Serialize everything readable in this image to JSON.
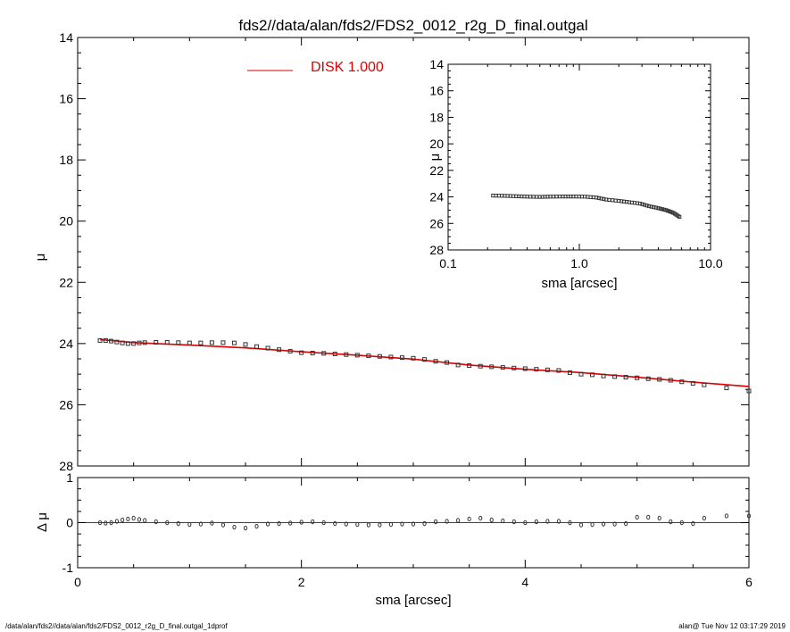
{
  "title": "fds2//data/alan/fds2/FDS2_0012_r2g_D_final.outgal",
  "footer_left": "/data/alan/fds2//data/alan/fds2/FDS2_0012_r2g_D_final.outgal_1dprof",
  "footer_right": "alan@  Tue Nov 12 03:17:29 2019",
  "colors": {
    "model": "#e00000",
    "data": "#333333"
  },
  "chart_data": [
    {
      "id": "main",
      "type": "scatter",
      "ylabel": "μ",
      "xlim": [
        0,
        6
      ],
      "ylim": [
        28,
        14
      ],
      "y_inverted": true,
      "yticks": [
        14,
        16,
        18,
        20,
        22,
        24,
        26,
        28
      ],
      "legend": {
        "label": "DISK  1.000",
        "placement": "top-center",
        "color": "#e00000"
      },
      "data_points": {
        "x": [
          0.2,
          0.25,
          0.3,
          0.35,
          0.4,
          0.45,
          0.5,
          0.55,
          0.6,
          0.7,
          0.8,
          0.9,
          1.0,
          1.1,
          1.2,
          1.3,
          1.4,
          1.5,
          1.6,
          1.7,
          1.8,
          1.9,
          2.0,
          2.1,
          2.2,
          2.3,
          2.4,
          2.5,
          2.6,
          2.7,
          2.8,
          2.9,
          3.0,
          3.1,
          3.2,
          3.3,
          3.4,
          3.5,
          3.6,
          3.7,
          3.8,
          3.9,
          4.0,
          4.1,
          4.2,
          4.3,
          4.4,
          4.5,
          4.6,
          4.7,
          4.8,
          4.9,
          5.0,
          5.1,
          5.2,
          5.3,
          5.4,
          5.5,
          5.6,
          5.8,
          6.0
        ],
        "y": [
          23.9,
          23.9,
          23.92,
          23.95,
          23.98,
          24.0,
          24.0,
          23.98,
          23.97,
          23.96,
          23.96,
          23.97,
          23.98,
          23.98,
          23.97,
          23.97,
          23.98,
          24.03,
          24.1,
          24.15,
          24.2,
          24.25,
          24.3,
          24.31,
          24.32,
          24.34,
          24.36,
          24.38,
          24.4,
          24.42,
          24.44,
          24.46,
          24.48,
          24.52,
          24.58,
          24.62,
          24.7,
          24.72,
          24.74,
          24.76,
          24.78,
          24.8,
          24.82,
          24.84,
          24.86,
          24.88,
          24.95,
          25.0,
          25.02,
          25.06,
          25.08,
          25.1,
          25.12,
          25.15,
          25.17,
          25.2,
          25.25,
          25.3,
          25.35,
          25.45,
          25.55
        ]
      },
      "model": {
        "x": [
          0.2,
          0.5,
          1.0,
          1.5,
          2.0,
          2.5,
          3.0,
          3.5,
          4.0,
          4.5,
          5.0,
          5.5,
          6.0
        ],
        "y": [
          23.87,
          23.97,
          24.05,
          24.14,
          24.27,
          24.38,
          24.51,
          24.7,
          24.84,
          24.95,
          25.1,
          25.26,
          25.4
        ]
      }
    },
    {
      "id": "inset",
      "type": "scatter",
      "ylabel": "μ",
      "xlabel": "sma [arcsec]",
      "xscale": "log",
      "xlim": [
        0.1,
        10.0
      ],
      "xtick_labels": [
        "0.1",
        "1.0",
        "10.0"
      ],
      "xticks": [
        0.1,
        1.0,
        10.0
      ],
      "ylim": [
        28,
        14
      ],
      "y_inverted": true,
      "yticks": [
        14,
        16,
        18,
        20,
        22,
        24,
        26,
        28
      ],
      "data_points": {
        "x": [
          0.22,
          0.27,
          0.33,
          0.4,
          0.5,
          0.6,
          0.75,
          0.9,
          1.1,
          1.35,
          1.6,
          2.0,
          2.4,
          2.9,
          3.4,
          4.0,
          4.6,
          5.2,
          5.8
        ],
        "y": [
          23.9,
          23.92,
          23.95,
          23.98,
          24.0,
          23.98,
          23.97,
          23.97,
          23.98,
          24.05,
          24.2,
          24.3,
          24.4,
          24.5,
          24.7,
          24.85,
          25.0,
          25.2,
          25.5
        ]
      }
    },
    {
      "id": "residual",
      "type": "scatter",
      "ylabel": "Δ μ",
      "xlabel": "sma [arcsec]",
      "xlim": [
        0,
        6
      ],
      "xticks": [
        0,
        2,
        4,
        6
      ],
      "ylim": [
        -1,
        1
      ],
      "yticks": [
        -1,
        0,
        1
      ],
      "zero_line": true,
      "x": [
        0.2,
        0.25,
        0.3,
        0.35,
        0.4,
        0.45,
        0.5,
        0.55,
        0.6,
        0.7,
        0.8,
        0.9,
        1.0,
        1.1,
        1.2,
        1.3,
        1.4,
        1.5,
        1.6,
        1.7,
        1.8,
        1.9,
        2.0,
        2.1,
        2.2,
        2.3,
        2.4,
        2.5,
        2.6,
        2.7,
        2.8,
        2.9,
        3.0,
        3.1,
        3.2,
        3.3,
        3.4,
        3.5,
        3.6,
        3.7,
        3.8,
        3.9,
        4.0,
        4.1,
        4.2,
        4.3,
        4.4,
        4.5,
        4.6,
        4.7,
        4.8,
        4.9,
        5.0,
        5.1,
        5.2,
        5.3,
        5.4,
        5.5,
        5.6,
        5.8,
        6.0
      ],
      "y": [
        0.0,
        -0.01,
        0.0,
        0.03,
        0.06,
        0.08,
        0.1,
        0.07,
        0.05,
        0.02,
        0.0,
        -0.02,
        -0.04,
        -0.03,
        -0.01,
        -0.05,
        -0.1,
        -0.12,
        -0.08,
        -0.03,
        -0.02,
        -0.01,
        0.01,
        0.02,
        0.0,
        -0.02,
        -0.03,
        -0.04,
        -0.05,
        -0.05,
        -0.04,
        -0.03,
        -0.03,
        -0.02,
        0.02,
        0.03,
        0.05,
        0.08,
        0.1,
        0.06,
        0.04,
        0.02,
        0.0,
        0.02,
        0.03,
        0.03,
        0.0,
        -0.05,
        -0.04,
        -0.03,
        -0.03,
        -0.02,
        0.12,
        0.12,
        0.1,
        0.02,
        0.0,
        -0.02,
        0.1,
        0.15,
        0.15
      ]
    }
  ],
  "axes_text": {
    "main_ylabel": "μ",
    "inset_ylabel": "μ",
    "inset_xlabel": "sma [arcsec]",
    "res_ylabel": "Δ μ",
    "res_xlabel": "sma [arcsec]"
  }
}
